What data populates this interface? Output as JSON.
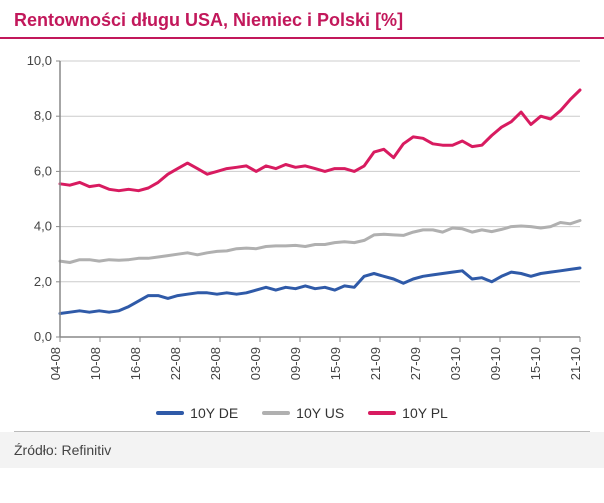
{
  "title": "Rentowności długu USA, Niemiec i Polski [%]",
  "title_color": "#c2185b",
  "title_border_color": "#c2185b",
  "source_label": "Źródło: Refinitiv",
  "chart": {
    "type": "line",
    "background_color": "#ffffff",
    "plot_border_color": "#888888",
    "grid_color": "#cccccc",
    "axis_label_color": "#444444",
    "axis_font_size": 13,
    "ylim": [
      0,
      10
    ],
    "ytick_step": 2,
    "y_tick_labels": [
      "0,0",
      "2,0",
      "4,0",
      "6,0",
      "8,0",
      "10,0"
    ],
    "x_categories": [
      "04-08",
      "10-08",
      "16-08",
      "22-08",
      "28-08",
      "03-09",
      "09-09",
      "15-09",
      "21-09",
      "27-09",
      "03-10",
      "09-10",
      "15-10",
      "21-10"
    ],
    "x_tick_every": 1,
    "line_width": 3,
    "series": [
      {
        "name": "10Y DE",
        "color": "#2f5aa8",
        "values": [
          0.85,
          0.9,
          0.95,
          0.9,
          0.95,
          0.9,
          0.95,
          1.1,
          1.3,
          1.5,
          1.5,
          1.4,
          1.5,
          1.55,
          1.6,
          1.6,
          1.55,
          1.6,
          1.55,
          1.6,
          1.7,
          1.8,
          1.7,
          1.8,
          1.75,
          1.85,
          1.75,
          1.8,
          1.7,
          1.85,
          1.8,
          2.2,
          2.3,
          2.2,
          2.1,
          1.95,
          2.1,
          2.2,
          2.25,
          2.3,
          2.35,
          2.4,
          2.1,
          2.15,
          2.0,
          2.2,
          2.35,
          2.3,
          2.2,
          2.3,
          2.35,
          2.4,
          2.45,
          2.5
        ]
      },
      {
        "name": "10Y US",
        "color": "#b0b0b0",
        "values": [
          2.75,
          2.7,
          2.8,
          2.8,
          2.75,
          2.8,
          2.78,
          2.8,
          2.85,
          2.85,
          2.9,
          2.95,
          3.0,
          3.05,
          2.98,
          3.05,
          3.1,
          3.12,
          3.2,
          3.22,
          3.2,
          3.28,
          3.3,
          3.3,
          3.32,
          3.28,
          3.35,
          3.35,
          3.42,
          3.45,
          3.42,
          3.5,
          3.7,
          3.72,
          3.7,
          3.68,
          3.8,
          3.88,
          3.88,
          3.8,
          3.95,
          3.92,
          3.8,
          3.88,
          3.82,
          3.9,
          4.0,
          4.02,
          4.0,
          3.95,
          4.0,
          4.15,
          4.1,
          4.22
        ]
      },
      {
        "name": "10Y PL",
        "color": "#d81b60",
        "values": [
          5.55,
          5.5,
          5.6,
          5.45,
          5.5,
          5.35,
          5.3,
          5.35,
          5.3,
          5.4,
          5.6,
          5.9,
          6.1,
          6.3,
          6.1,
          5.9,
          6.0,
          6.1,
          6.15,
          6.2,
          6.0,
          6.2,
          6.1,
          6.25,
          6.15,
          6.2,
          6.1,
          6.0,
          6.1,
          6.1,
          6.0,
          6.2,
          6.7,
          6.8,
          6.5,
          7.0,
          7.25,
          7.2,
          7.0,
          6.95,
          6.95,
          7.1,
          6.9,
          6.95,
          7.3,
          7.6,
          7.8,
          8.15,
          7.7,
          8.0,
          7.9,
          8.2,
          8.6,
          8.95
        ]
      }
    ],
    "legend_labels": [
      "10Y DE",
      "10Y US",
      "10Y PL"
    ]
  }
}
